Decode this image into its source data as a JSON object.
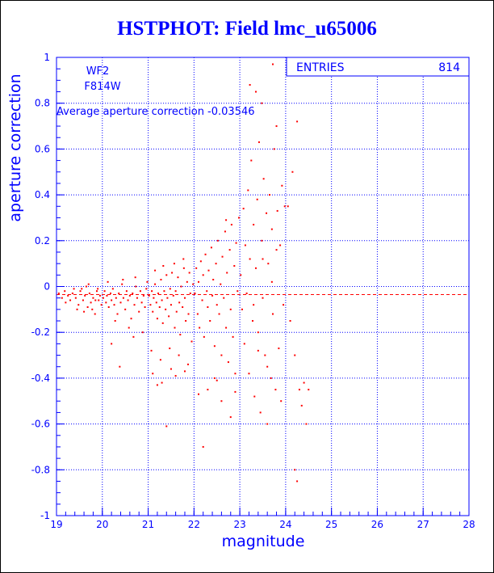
{
  "title": "HSTPHOT: Field lmc_u65006",
  "chart_data": {
    "type": "scatter",
    "title": "HSTPHOT: Field lmc_u65006",
    "xlabel": "magnitude",
    "ylabel": "aperture correction",
    "xlim": [
      19,
      28
    ],
    "ylim": [
      -1,
      1
    ],
    "x_ticks": [
      "19",
      "20",
      "21",
      "22",
      "23",
      "24",
      "25",
      "26",
      "27",
      "28"
    ],
    "y_ticks": [
      "1",
      "0.8",
      "0.6",
      "0.4",
      "0.2",
      "0",
      "-0.2",
      "-0.4",
      "-0.6",
      "-0.8",
      "-1"
    ],
    "grid": true,
    "annotations": [
      "WF2",
      "F814W",
      "Average aperture correction -0.03546"
    ],
    "stats_box": {
      "label": "ENTRIES",
      "value": "814"
    },
    "average_line": -0.03546,
    "colors": {
      "axes": "#0000ff",
      "points": "#ff0000",
      "title": "#0000ff"
    },
    "series": [
      {
        "values": [
          [
            19.05,
            -0.03
          ],
          [
            19.12,
            -0.05
          ],
          [
            19.18,
            -0.02
          ],
          [
            19.25,
            -0.04
          ],
          [
            19.3,
            -0.06
          ],
          [
            19.35,
            -0.03
          ],
          [
            19.42,
            -0.05
          ],
          [
            19.48,
            -0.08
          ],
          [
            19.52,
            -0.02
          ],
          [
            19.58,
            -0.06
          ],
          [
            19.62,
            -0.04
          ],
          [
            19.68,
            -0.09
          ],
          [
            19.72,
            -0.03
          ],
          [
            19.75,
            -0.07
          ],
          [
            19.8,
            -0.05
          ],
          [
            19.84,
            -0.12
          ],
          [
            19.88,
            -0.02
          ],
          [
            19.92,
            -0.06
          ],
          [
            19.95,
            -0.04
          ],
          [
            19.98,
            -0.08
          ],
          [
            19.45,
            -0.1
          ],
          [
            19.55,
            -0.01
          ],
          [
            19.65,
            0.0
          ],
          [
            19.78,
            -0.1
          ],
          [
            19.9,
            -0.01
          ],
          [
            19.2,
            -0.07
          ],
          [
            19.38,
            -0.01
          ],
          [
            19.6,
            -0.11
          ],
          [
            19.7,
            0.01
          ],
          [
            19.85,
            -0.06
          ],
          [
            20.02,
            -0.05
          ],
          [
            20.05,
            -0.02
          ],
          [
            20.08,
            -0.07
          ],
          [
            20.1,
            -0.04
          ],
          [
            20.14,
            -0.09
          ],
          [
            20.18,
            -0.03
          ],
          [
            20.2,
            -0.06
          ],
          [
            20.23,
            -0.01
          ],
          [
            20.26,
            -0.08
          ],
          [
            20.3,
            -0.05
          ],
          [
            20.33,
            -0.12
          ],
          [
            20.36,
            -0.03
          ],
          [
            20.4,
            -0.07
          ],
          [
            20.43,
            0.01
          ],
          [
            20.46,
            -0.05
          ],
          [
            20.5,
            -0.1
          ],
          [
            20.53,
            -0.02
          ],
          [
            20.56,
            -0.06
          ],
          [
            20.6,
            -0.04
          ],
          [
            20.63,
            -0.14
          ],
          [
            20.66,
            -0.03
          ],
          [
            20.7,
            -0.08
          ],
          [
            20.73,
            0.0
          ],
          [
            20.76,
            -0.05
          ],
          [
            20.8,
            -0.11
          ],
          [
            20.83,
            -0.02
          ],
          [
            20.86,
            -0.07
          ],
          [
            20.9,
            -0.04
          ],
          [
            20.93,
            -0.09
          ],
          [
            20.96,
            -0.01
          ],
          [
            20.12,
            0.02
          ],
          [
            20.28,
            -0.15
          ],
          [
            20.45,
            0.03
          ],
          [
            20.58,
            -0.18
          ],
          [
            20.72,
            0.04
          ],
          [
            20.88,
            -0.2
          ],
          [
            20.98,
            0.02
          ],
          [
            20.2,
            -0.25
          ],
          [
            20.38,
            -0.35
          ],
          [
            20.68,
            -0.22
          ],
          [
            21.02,
            -0.04
          ],
          [
            21.05,
            -0.08
          ],
          [
            21.08,
            -0.02
          ],
          [
            21.1,
            -0.11
          ],
          [
            21.12,
            -0.05
          ],
          [
            21.15,
            0.01
          ],
          [
            21.18,
            -0.07
          ],
          [
            21.2,
            -0.14
          ],
          [
            21.22,
            -0.03
          ],
          [
            21.25,
            -0.09
          ],
          [
            21.28,
            0.03
          ],
          [
            21.3,
            -0.06
          ],
          [
            21.32,
            -0.16
          ],
          [
            21.35,
            -0.02
          ],
          [
            21.38,
            -0.1
          ],
          [
            21.4,
            0.05
          ],
          [
            21.42,
            -0.05
          ],
          [
            21.45,
            -0.13
          ],
          [
            21.48,
            -0.01
          ],
          [
            21.5,
            -0.08
          ],
          [
            21.52,
            0.06
          ],
          [
            21.55,
            -0.04
          ],
          [
            21.58,
            -0.18
          ],
          [
            21.6,
            -0.02
          ],
          [
            21.62,
            -0.11
          ],
          [
            21.65,
            0.04
          ],
          [
            21.68,
            -0.07
          ],
          [
            21.7,
            -0.21
          ],
          [
            21.72,
            0.0
          ],
          [
            21.75,
            -0.09
          ],
          [
            21.78,
            0.08
          ],
          [
            21.8,
            -0.05
          ],
          [
            21.82,
            -0.15
          ],
          [
            21.85,
            0.02
          ],
          [
            21.88,
            -0.12
          ],
          [
            21.9,
            0.06
          ],
          [
            21.92,
            -0.03
          ],
          [
            21.95,
            -0.24
          ],
          [
            21.98,
            0.01
          ],
          [
            21.15,
            0.07
          ],
          [
            21.33,
            0.09
          ],
          [
            21.57,
            0.1
          ],
          [
            21.77,
            0.12
          ],
          [
            21.07,
            -0.28
          ],
          [
            21.27,
            -0.32
          ],
          [
            21.47,
            -0.27
          ],
          [
            21.67,
            -0.3
          ],
          [
            21.87,
            -0.34
          ],
          [
            21.3,
            -0.42
          ],
          [
            21.4,
            -0.61
          ],
          [
            21.1,
            -0.38
          ],
          [
            21.6,
            -0.39
          ],
          [
            21.2,
            -0.43
          ],
          [
            21.8,
            -0.37
          ],
          [
            21.5,
            -0.36
          ],
          [
            22.02,
            -0.03
          ],
          [
            22.05,
            0.08
          ],
          [
            22.08,
            -0.12
          ],
          [
            22.1,
            0.02
          ],
          [
            22.12,
            -0.18
          ],
          [
            22.15,
            0.11
          ],
          [
            22.18,
            -0.06
          ],
          [
            22.2,
            0.05
          ],
          [
            22.22,
            -0.22
          ],
          [
            22.25,
            0.14
          ],
          [
            22.28,
            -0.02
          ],
          [
            22.3,
            -0.09
          ],
          [
            22.32,
            0.07
          ],
          [
            22.35,
            -0.15
          ],
          [
            22.38,
            0.17
          ],
          [
            22.4,
            -0.04
          ],
          [
            22.42,
            0.03
          ],
          [
            22.45,
            -0.26
          ],
          [
            22.48,
            0.1
          ],
          [
            22.5,
            -0.08
          ],
          [
            22.52,
            0.2
          ],
          [
            22.55,
            -0.12
          ],
          [
            22.58,
            0.01
          ],
          [
            22.6,
            -0.3
          ],
          [
            22.62,
            0.13
          ],
          [
            22.65,
            -0.05
          ],
          [
            22.68,
            0.24
          ],
          [
            22.7,
            -0.18
          ],
          [
            22.72,
            0.06
          ],
          [
            22.75,
            -0.33
          ],
          [
            22.78,
            0.16
          ],
          [
            22.8,
            -0.1
          ],
          [
            22.82,
            0.27
          ],
          [
            22.85,
            -0.22
          ],
          [
            22.88,
            0.09
          ],
          [
            22.9,
            -0.38
          ],
          [
            22.92,
            0.19
          ],
          [
            22.95,
            -0.02
          ],
          [
            22.98,
            0.3
          ],
          [
            22.3,
            -0.45
          ],
          [
            22.6,
            -0.5
          ],
          [
            22.8,
            -0.57
          ],
          [
            22.2,
            -0.7
          ],
          [
            22.5,
            -0.41
          ],
          [
            22.9,
            -0.46
          ],
          [
            22.1,
            -0.47
          ],
          [
            22.7,
            0.29
          ],
          [
            22.45,
            -0.4
          ],
          [
            23.02,
            0.05
          ],
          [
            23.05,
            -0.1
          ],
          [
            23.08,
            0.34
          ],
          [
            23.1,
            -0.25
          ],
          [
            23.12,
            0.18
          ],
          [
            23.15,
            -0.03
          ],
          [
            23.18,
            0.42
          ],
          [
            23.2,
            -0.38
          ],
          [
            23.22,
            0.12
          ],
          [
            23.25,
            0.55
          ],
          [
            23.28,
            -0.15
          ],
          [
            23.3,
            0.27
          ],
          [
            23.32,
            -0.48
          ],
          [
            23.35,
            0.08
          ],
          [
            23.38,
            0.38
          ],
          [
            23.4,
            -0.2
          ],
          [
            23.42,
            0.63
          ],
          [
            23.45,
            -0.55
          ],
          [
            23.48,
            0.2
          ],
          [
            23.5,
            -0.05
          ],
          [
            23.52,
            0.47
          ],
          [
            23.55,
            -0.3
          ],
          [
            23.58,
            0.32
          ],
          [
            23.6,
            -0.6
          ],
          [
            23.62,
            0.1
          ],
          [
            23.65,
            0.4
          ],
          [
            23.68,
            -0.4
          ],
          [
            23.7,
            0.25
          ],
          [
            23.72,
            -0.12
          ],
          [
            23.75,
            0.6
          ],
          [
            23.78,
            -0.45
          ],
          [
            23.8,
            0.16
          ],
          [
            23.82,
            0.33
          ],
          [
            23.85,
            -0.27
          ],
          [
            23.88,
            0.18
          ],
          [
            23.9,
            -0.5
          ],
          [
            23.92,
            0.44
          ],
          [
            23.95,
            -0.08
          ],
          [
            23.98,
            0.35
          ],
          [
            23.22,
            0.88
          ],
          [
            23.35,
            0.85
          ],
          [
            23.48,
            0.8
          ],
          [
            23.72,
            0.97
          ],
          [
            23.8,
            0.7
          ],
          [
            23.6,
            -0.35
          ],
          [
            23.4,
            -0.28
          ],
          [
            23.7,
            0.02
          ],
          [
            23.5,
            0.12
          ],
          [
            23.3,
            -0.08
          ],
          [
            24.05,
            0.35
          ],
          [
            24.1,
            -0.15
          ],
          [
            24.15,
            0.5
          ],
          [
            24.2,
            -0.3
          ],
          [
            24.25,
            0.72
          ],
          [
            24.3,
            -0.45
          ],
          [
            24.35,
            -0.52
          ],
          [
            24.4,
            -0.42
          ],
          [
            24.45,
            -0.6
          ],
          [
            24.5,
            -0.45
          ],
          [
            24.2,
            -0.8
          ],
          [
            24.25,
            -0.85
          ]
        ]
      }
    ]
  }
}
